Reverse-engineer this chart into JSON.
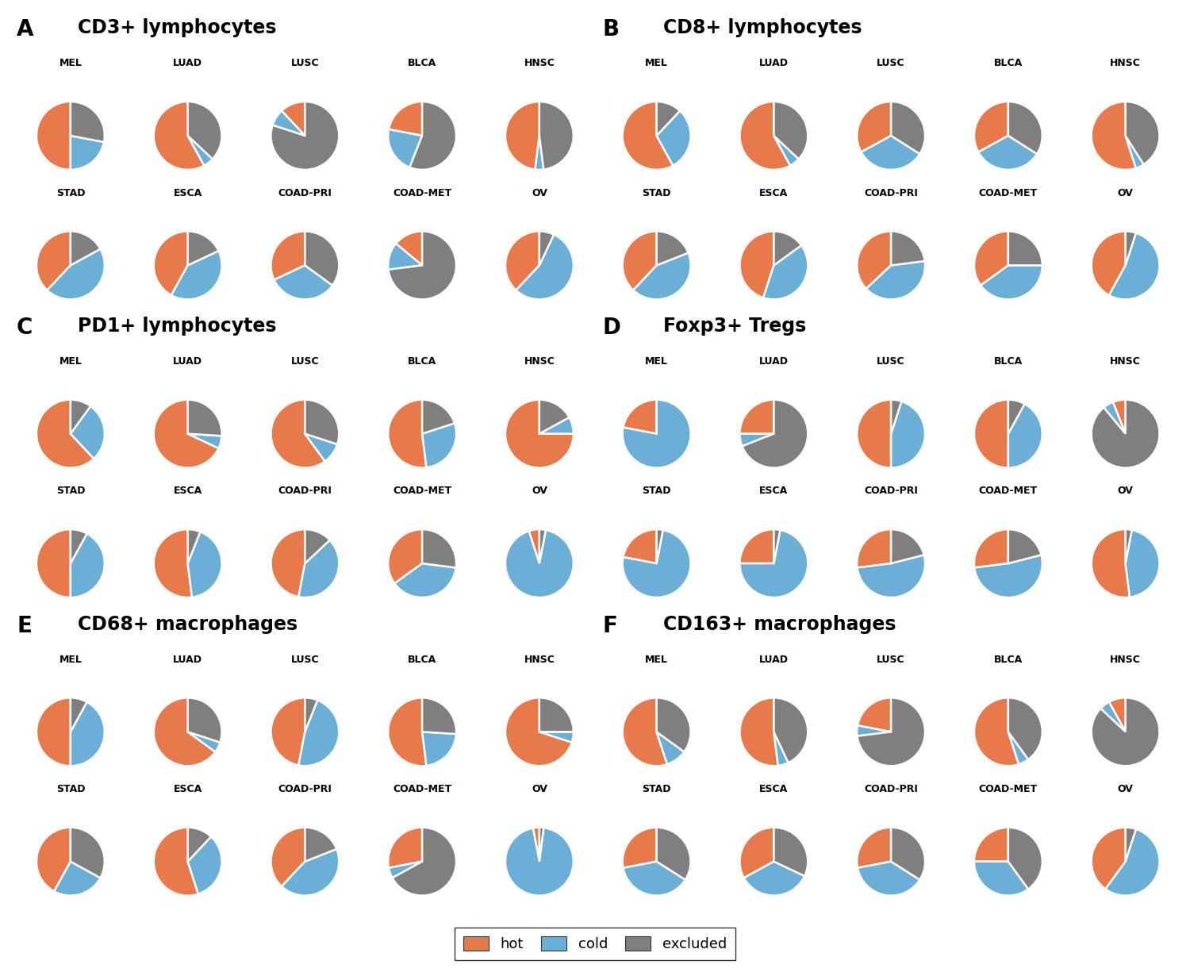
{
  "colors": {
    "hot": "#E8794A",
    "cold": "#6BAED6",
    "excluded": "#7F7F7F"
  },
  "panels": [
    {
      "label": "A",
      "title": "CD3+ lymphocytes",
      "cancers": [
        "MEL",
        "LUAD",
        "LUSC",
        "BLCA",
        "HNSC",
        "STAD",
        "ESCA",
        "COAD-PRI",
        "COAD-MET",
        "OV"
      ],
      "data": [
        [
          0.5,
          0.22,
          0.28
        ],
        [
          0.58,
          0.05,
          0.37
        ],
        [
          0.12,
          0.08,
          0.8
        ],
        [
          0.22,
          0.22,
          0.56
        ],
        [
          0.48,
          0.04,
          0.48
        ],
        [
          0.38,
          0.45,
          0.17
        ],
        [
          0.42,
          0.4,
          0.18
        ],
        [
          0.32,
          0.33,
          0.35
        ],
        [
          0.14,
          0.13,
          0.73
        ],
        [
          0.38,
          0.55,
          0.07
        ]
      ]
    },
    {
      "label": "B",
      "title": "CD8+ lymphocytes",
      "cancers": [
        "MEL",
        "LUAD",
        "LUSC",
        "BLCA",
        "HNSC",
        "STAD",
        "ESCA",
        "COAD-PRI",
        "COAD-MET",
        "OV"
      ],
      "data": [
        [
          0.58,
          0.3,
          0.12
        ],
        [
          0.58,
          0.05,
          0.37
        ],
        [
          0.33,
          0.33,
          0.34
        ],
        [
          0.33,
          0.33,
          0.34
        ],
        [
          0.55,
          0.04,
          0.41
        ],
        [
          0.38,
          0.43,
          0.19
        ],
        [
          0.45,
          0.4,
          0.15
        ],
        [
          0.37,
          0.4,
          0.23
        ],
        [
          0.35,
          0.4,
          0.25
        ],
        [
          0.42,
          0.53,
          0.05
        ]
      ]
    },
    {
      "label": "C",
      "title": "PD1+ lymphocytes",
      "cancers": [
        "MEL",
        "LUAD",
        "LUSC",
        "BLCA",
        "HNSC",
        "STAD",
        "ESCA",
        "COAD-PRI",
        "COAD-MET",
        "OV"
      ],
      "data": [
        [
          0.62,
          0.28,
          0.1
        ],
        [
          0.68,
          0.06,
          0.26
        ],
        [
          0.6,
          0.1,
          0.3
        ],
        [
          0.52,
          0.28,
          0.2
        ],
        [
          0.75,
          0.08,
          0.17
        ],
        [
          0.5,
          0.42,
          0.08
        ],
        [
          0.52,
          0.42,
          0.06
        ],
        [
          0.47,
          0.4,
          0.13
        ],
        [
          0.35,
          0.38,
          0.27
        ],
        [
          0.05,
          0.92,
          0.03
        ]
      ]
    },
    {
      "label": "D",
      "title": "Foxp3+ Tregs",
      "cancers": [
        "MEL",
        "LUAD",
        "LUSC",
        "BLCA",
        "HNSC",
        "STAD",
        "ESCA",
        "COAD-PRI",
        "COAD-MET",
        "OV"
      ],
      "data": [
        [
          0.22,
          0.78,
          0.0
        ],
        [
          0.25,
          0.06,
          0.69
        ],
        [
          0.5,
          0.45,
          0.05
        ],
        [
          0.5,
          0.42,
          0.08
        ],
        [
          0.06,
          0.05,
          0.89
        ],
        [
          0.22,
          0.75,
          0.03
        ],
        [
          0.25,
          0.72,
          0.03
        ],
        [
          0.27,
          0.52,
          0.21
        ],
        [
          0.27,
          0.52,
          0.21
        ],
        [
          0.52,
          0.45,
          0.03
        ]
      ]
    },
    {
      "label": "E",
      "title": "CD68+ macrophages",
      "cancers": [
        "MEL",
        "LUAD",
        "LUSC",
        "BLCA",
        "HNSC",
        "STAD",
        "ESCA",
        "COAD-PRI",
        "COAD-MET",
        "OV"
      ],
      "data": [
        [
          0.5,
          0.42,
          0.08
        ],
        [
          0.65,
          0.05,
          0.3
        ],
        [
          0.47,
          0.47,
          0.06
        ],
        [
          0.52,
          0.22,
          0.26
        ],
        [
          0.7,
          0.05,
          0.25
        ],
        [
          0.42,
          0.25,
          0.33
        ],
        [
          0.55,
          0.33,
          0.12
        ],
        [
          0.38,
          0.43,
          0.19
        ],
        [
          0.28,
          0.05,
          0.67
        ],
        [
          0.03,
          0.95,
          0.02
        ]
      ]
    },
    {
      "label": "F",
      "title": "CD163+ macrophages",
      "cancers": [
        "MEL",
        "LUAD",
        "LUSC",
        "BLCA",
        "HNSC",
        "STAD",
        "ESCA",
        "COAD-PRI",
        "COAD-MET",
        "OV"
      ],
      "data": [
        [
          0.55,
          0.1,
          0.35
        ],
        [
          0.52,
          0.05,
          0.43
        ],
        [
          0.22,
          0.05,
          0.73
        ],
        [
          0.55,
          0.05,
          0.4
        ],
        [
          0.08,
          0.05,
          0.87
        ],
        [
          0.28,
          0.38,
          0.34
        ],
        [
          0.33,
          0.35,
          0.32
        ],
        [
          0.28,
          0.38,
          0.34
        ],
        [
          0.25,
          0.35,
          0.4
        ],
        [
          0.4,
          0.55,
          0.05
        ]
      ]
    }
  ]
}
